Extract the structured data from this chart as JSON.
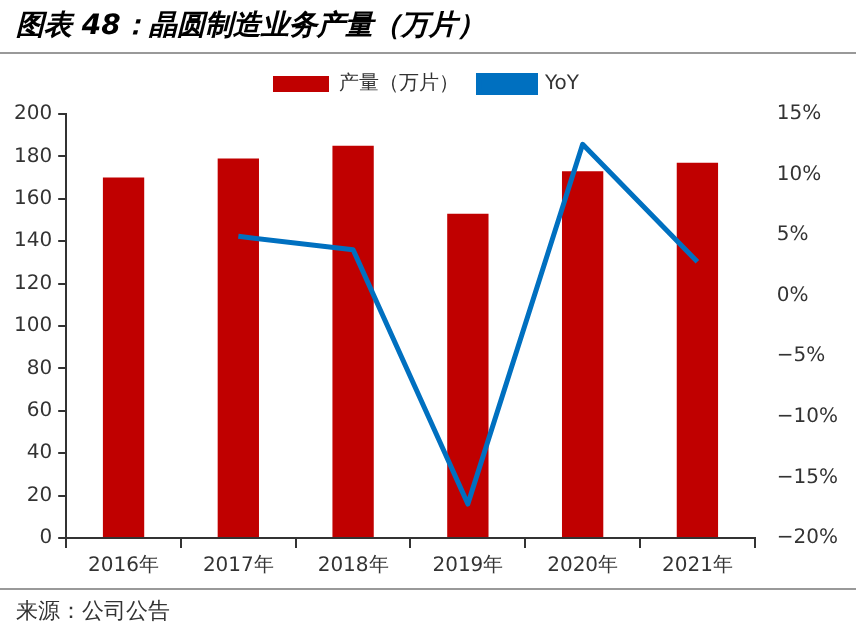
{
  "chart_data": {
    "type": "bar",
    "title": "图表 48：晶圆制造业务产量（万片）",
    "categories": [
      "2016年",
      "2017年",
      "2018年",
      "2019年",
      "2020年",
      "2021年"
    ],
    "series": [
      {
        "name": "产量（万片）",
        "color": "#c00000",
        "values": [
          170,
          179,
          185,
          153,
          173,
          177
        ]
      },
      {
        "name": "YoY",
        "type": "line",
        "axis": "y2",
        "color": "#0070c0",
        "values": [
          null,
          4.9,
          3.8,
          -17.2,
          12.5,
          2.8
        ]
      }
    ],
    "ylim": [
      0,
      200
    ],
    "yticks": [
      0,
      20,
      40,
      60,
      80,
      100,
      120,
      140,
      160,
      180,
      200
    ],
    "y2lim": [
      -20,
      15
    ],
    "y2ticks": [
      {
        "value": -20,
        "label": "−20%"
      },
      {
        "value": -15,
        "label": "−15%"
      },
      {
        "value": -10,
        "label": "−10%"
      },
      {
        "value": -5,
        "label": "−5%"
      },
      {
        "value": 0,
        "label": "0%"
      },
      {
        "value": 5,
        "label": "5%"
      },
      {
        "value": 10,
        "label": "10%"
      },
      {
        "value": 15,
        "label": "15%"
      }
    ],
    "grid": false,
    "legend": "top",
    "marker": "none",
    "line_style": "solid",
    "annotations": [
      "来源：公司公告"
    ]
  }
}
